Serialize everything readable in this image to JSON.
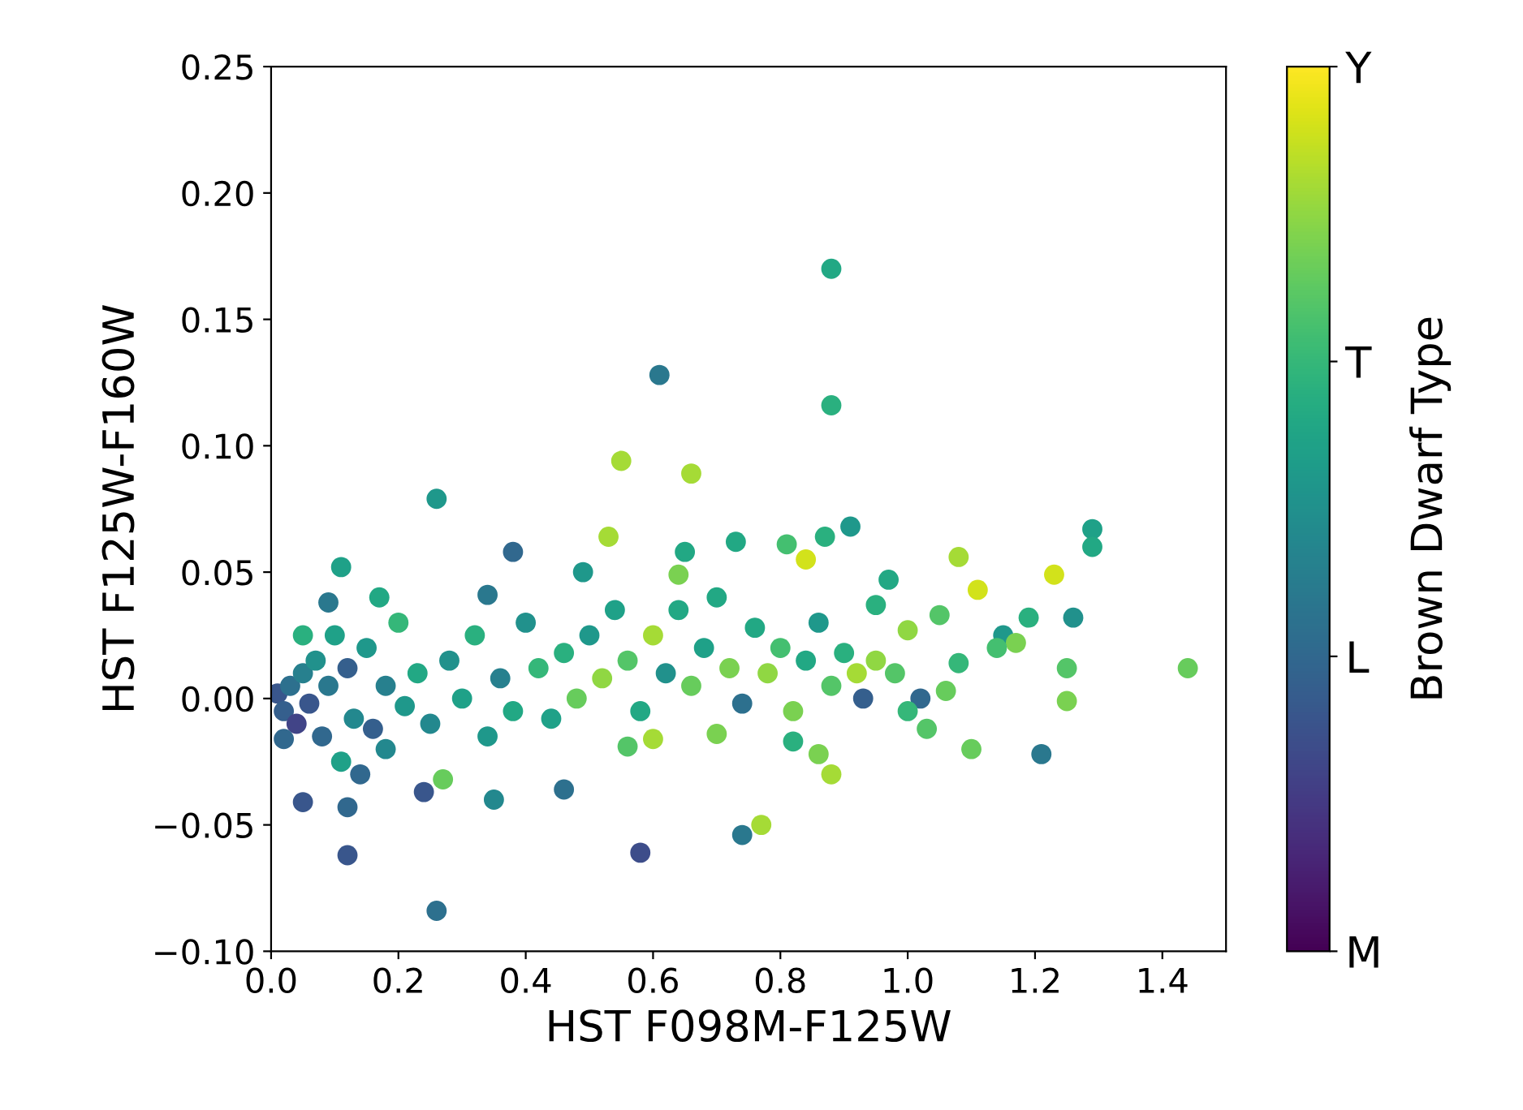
{
  "chart_data": {
    "type": "scatter",
    "xlabel": "HST F098M-F125W",
    "ylabel": "HST F125W-F160W",
    "clabel": "Brown Dwarf Type",
    "xlim": [
      0.0,
      1.5
    ],
    "ylim": [
      -0.1,
      0.25
    ],
    "xticks": [
      {
        "value": 0.0,
        "label": "0.0"
      },
      {
        "value": 0.2,
        "label": "0.2"
      },
      {
        "value": 0.4,
        "label": "0.4"
      },
      {
        "value": 0.6,
        "label": "0.6"
      },
      {
        "value": 0.8,
        "label": "0.8"
      },
      {
        "value": 1.0,
        "label": "1.0"
      },
      {
        "value": 1.2,
        "label": "1.2"
      },
      {
        "value": 1.4,
        "label": "1.4"
      }
    ],
    "yticks": [
      {
        "value": -0.1,
        "label": "−0.10"
      },
      {
        "value": -0.05,
        "label": "−0.05"
      },
      {
        "value": 0.0,
        "label": "0.00"
      },
      {
        "value": 0.05,
        "label": "0.05"
      },
      {
        "value": 0.1,
        "label": "0.10"
      },
      {
        "value": 0.15,
        "label": "0.15"
      },
      {
        "value": 0.2,
        "label": "0.20"
      },
      {
        "value": 0.25,
        "label": "0.25"
      }
    ],
    "clim": [
      0,
      3
    ],
    "cticks": [
      {
        "value": 0,
        "label": "M"
      },
      {
        "value": 1,
        "label": "L"
      },
      {
        "value": 2,
        "label": "T"
      },
      {
        "value": 3,
        "label": "Y"
      }
    ],
    "marker": "circle",
    "grid": false,
    "legend": false,
    "x": [
      0.88,
      0.61,
      0.88,
      0.26,
      0.55,
      0.66,
      0.26,
      0.58,
      0.74,
      0.77,
      0.12,
      0.05,
      0.12,
      0.24,
      0.35,
      0.46,
      0.27,
      1.21,
      1.44,
      1.29,
      1.29,
      1.26,
      1.23,
      1.25,
      1.25,
      1.11,
      1.08,
      1.1,
      1.03,
      0.38,
      0.11,
      0.53,
      0.73,
      0.81,
      0.84,
      0.87,
      0.91,
      0.88,
      0.86,
      0.82,
      0.7,
      0.6,
      0.56,
      0.17,
      0.34,
      0.49,
      0.64,
      0.65,
      0.97,
      0.95,
      1.0,
      1.05,
      1.15,
      1.17,
      1.19,
      1.14,
      1.08,
      1.06,
      1.02,
      0.93,
      0.01,
      0.02,
      0.03,
      0.04,
      0.05,
      0.06,
      0.07,
      0.08,
      0.09,
      0.1,
      0.11,
      0.12,
      0.13,
      0.15,
      0.16,
      0.18,
      0.2,
      0.21,
      0.23,
      0.25,
      0.28,
      0.3,
      0.32,
      0.34,
      0.36,
      0.38,
      0.4,
      0.42,
      0.44,
      0.46,
      0.48,
      0.5,
      0.52,
      0.54,
      0.56,
      0.58,
      0.6,
      0.62,
      0.64,
      0.66,
      0.68,
      0.7,
      0.72,
      0.74,
      0.76,
      0.78,
      0.8,
      0.82,
      0.84,
      0.86,
      0.88,
      0.9,
      0.92,
      0.95,
      0.98,
      1.0,
      0.02,
      0.14,
      0.18,
      0.09,
      0.05
    ],
    "values": [
      0.17,
      0.128,
      0.116,
      0.079,
      0.094,
      0.089,
      -0.084,
      -0.061,
      -0.054,
      -0.05,
      -0.062,
      -0.041,
      -0.043,
      -0.037,
      -0.04,
      -0.036,
      -0.032,
      -0.022,
      0.012,
      0.067,
      0.06,
      0.032,
      0.049,
      -0.001,
      0.012,
      0.043,
      0.056,
      -0.02,
      -0.012,
      0.058,
      0.052,
      0.064,
      0.062,
      0.061,
      0.055,
      0.064,
      0.068,
      -0.03,
      -0.022,
      -0.017,
      -0.014,
      -0.016,
      -0.019,
      0.04,
      0.041,
      0.05,
      0.049,
      0.058,
      0.047,
      0.037,
      0.027,
      0.033,
      0.025,
      0.022,
      0.032,
      0.02,
      0.014,
      0.003,
      0.0,
      0.0,
      0.002,
      -0.005,
      0.005,
      -0.01,
      0.01,
      -0.002,
      0.015,
      -0.015,
      0.005,
      0.025,
      -0.025,
      0.012,
      -0.008,
      0.02,
      -0.012,
      0.005,
      0.03,
      -0.003,
      0.01,
      -0.01,
      0.015,
      0.0,
      0.025,
      -0.015,
      0.008,
      -0.005,
      0.03,
      0.012,
      -0.008,
      0.018,
      0.0,
      0.025,
      0.008,
      0.035,
      0.015,
      -0.005,
      0.025,
      0.01,
      0.035,
      0.005,
      0.02,
      0.04,
      0.012,
      -0.002,
      0.028,
      0.01,
      0.02,
      -0.005,
      0.015,
      0.03,
      0.005,
      0.018,
      0.01,
      0.015,
      0.01,
      -0.005,
      -0.016,
      -0.03,
      -0.02,
      0.038,
      0.025
    ],
    "cvalues": [
      1.8,
      1.2,
      1.9,
      1.6,
      2.6,
      2.6,
      1.1,
      0.7,
      1.2,
      2.6,
      0.8,
      0.8,
      1.0,
      0.8,
      1.4,
      1.1,
      2.3,
      1.2,
      2.3,
      1.7,
      1.8,
      1.5,
      2.8,
      2.4,
      2.2,
      2.8,
      2.6,
      2.3,
      2.2,
      1.0,
      1.7,
      2.6,
      1.8,
      2.1,
      2.8,
      1.9,
      1.6,
      2.6,
      2.4,
      1.9,
      2.4,
      2.6,
      2.2,
      1.8,
      1.2,
      1.6,
      2.4,
      1.8,
      1.8,
      1.9,
      2.5,
      2.2,
      1.6,
      2.4,
      1.9,
      2.1,
      2.0,
      2.3,
      1.0,
      0.9,
      0.8,
      0.9,
      1.1,
      0.6,
      1.3,
      0.8,
      1.5,
      1.0,
      1.2,
      1.7,
      1.7,
      0.9,
      1.4,
      1.6,
      0.9,
      1.3,
      2.0,
      1.6,
      1.8,
      1.4,
      1.5,
      1.7,
      1.9,
      1.6,
      1.3,
      1.8,
      1.5,
      2.0,
      1.7,
      1.9,
      2.3,
      1.6,
      2.5,
      1.7,
      2.2,
      1.8,
      2.6,
      1.5,
      1.8,
      2.3,
      1.7,
      1.8,
      2.4,
      1.1,
      1.8,
      2.5,
      2.1,
      2.4,
      1.8,
      1.6,
      2.2,
      1.9,
      2.6,
      2.5,
      2.2,
      2.0,
      1.0,
      1.0,
      1.4,
      1.2,
      1.9
    ]
  }
}
